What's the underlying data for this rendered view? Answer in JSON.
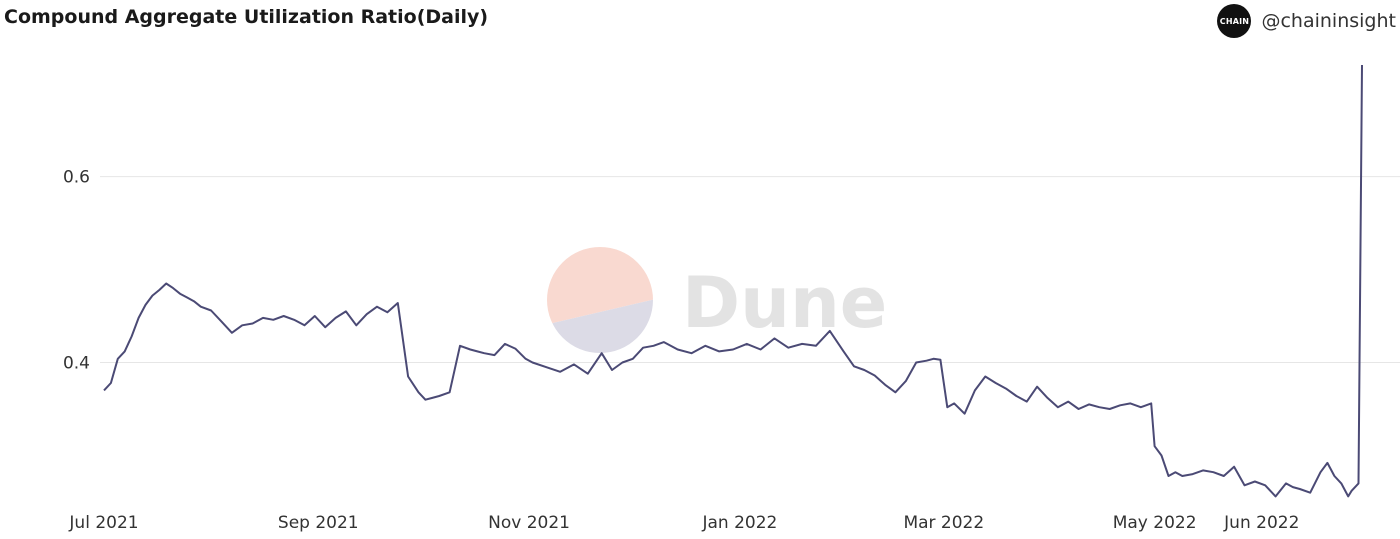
{
  "header": {
    "title": "Compound Aggregate Utilization Ratio(Daily)"
  },
  "brand": {
    "logo_text": "CHAIN",
    "handle": "@chaininsight"
  },
  "watermark": {
    "text": "Dune"
  },
  "colors": {
    "line": "#4b4a75",
    "grid": "#e6e6e6",
    "wm_top": "#f9d9d0",
    "wm_bottom": "#dcdbe6"
  },
  "chart_data": {
    "type": "line",
    "title": "Compound Aggregate Utilization Ratio(Daily)",
    "xlabel": "",
    "ylabel": "",
    "x_range": [
      "2021-07-01",
      "2022-06-30"
    ],
    "ylim": [
      0.25,
      0.72
    ],
    "yticks": [
      0.4,
      0.6
    ],
    "ytick_labels": [
      "0.4",
      "0.6"
    ],
    "xticks": [
      "2021-07-01",
      "2021-09-01",
      "2021-11-01",
      "2022-01-01",
      "2022-03-01",
      "2022-05-01",
      "2022-06-01"
    ],
    "xtick_labels": [
      "Jul 2021",
      "Sep 2021",
      "Nov 2021",
      "Jan 2022",
      "Mar 2022",
      "May 2022",
      "Jun 2022"
    ],
    "grid": true,
    "series": [
      {
        "name": "",
        "x": [
          "2021-07-01",
          "2021-07-03",
          "2021-07-05",
          "2021-07-07",
          "2021-07-09",
          "2021-07-11",
          "2021-07-13",
          "2021-07-15",
          "2021-07-17",
          "2021-07-19",
          "2021-07-21",
          "2021-07-23",
          "2021-07-25",
          "2021-07-27",
          "2021-07-29",
          "2021-08-01",
          "2021-08-04",
          "2021-08-07",
          "2021-08-10",
          "2021-08-13",
          "2021-08-16",
          "2021-08-19",
          "2021-08-22",
          "2021-08-25",
          "2021-08-28",
          "2021-08-31",
          "2021-09-03",
          "2021-09-06",
          "2021-09-09",
          "2021-09-12",
          "2021-09-15",
          "2021-09-18",
          "2021-09-21",
          "2021-09-24",
          "2021-09-27",
          "2021-09-30",
          "2021-10-02",
          "2021-10-04",
          "2021-10-06",
          "2021-10-09",
          "2021-10-12",
          "2021-10-15",
          "2021-10-17",
          "2021-10-19",
          "2021-10-22",
          "2021-10-25",
          "2021-10-28",
          "2021-10-31",
          "2021-11-02",
          "2021-11-06",
          "2021-11-10",
          "2021-11-14",
          "2021-11-18",
          "2021-11-22",
          "2021-11-25",
          "2021-11-28",
          "2021-12-01",
          "2021-12-04",
          "2021-12-07",
          "2021-12-10",
          "2021-12-14",
          "2021-12-18",
          "2021-12-22",
          "2021-12-26",
          "2021-12-30",
          "2022-01-03",
          "2022-01-07",
          "2022-01-11",
          "2022-01-15",
          "2022-01-19",
          "2022-01-23",
          "2022-01-27",
          "2022-01-31",
          "2022-02-03",
          "2022-02-06",
          "2022-02-09",
          "2022-02-12",
          "2022-02-15",
          "2022-02-18",
          "2022-02-21",
          "2022-02-24",
          "2022-02-26",
          "2022-02-28",
          "2022-03-02",
          "2022-03-04",
          "2022-03-07",
          "2022-03-10",
          "2022-03-13",
          "2022-03-16",
          "2022-03-19",
          "2022-03-22",
          "2022-03-25",
          "2022-03-28",
          "2022-03-31",
          "2022-04-03",
          "2022-04-06",
          "2022-04-09",
          "2022-04-12",
          "2022-04-15",
          "2022-04-18",
          "2022-04-21",
          "2022-04-24",
          "2022-04-27",
          "2022-04-30",
          "2022-05-01",
          "2022-05-03",
          "2022-05-05",
          "2022-05-07",
          "2022-05-09",
          "2022-05-12",
          "2022-05-15",
          "2022-05-18",
          "2022-05-21",
          "2022-05-24",
          "2022-05-27",
          "2022-05-30",
          "2022-06-02",
          "2022-06-05",
          "2022-06-08",
          "2022-06-10",
          "2022-06-12",
          "2022-06-15",
          "2022-06-18",
          "2022-06-20",
          "2022-06-22",
          "2022-06-24",
          "2022-06-26",
          "2022-06-27",
          "2022-06-29",
          "2022-06-30"
        ],
        "y": [
          0.37,
          0.378,
          0.404,
          0.412,
          0.428,
          0.448,
          0.462,
          0.472,
          0.478,
          0.485,
          0.48,
          0.474,
          0.47,
          0.466,
          0.46,
          0.456,
          0.444,
          0.432,
          0.44,
          0.442,
          0.448,
          0.446,
          0.45,
          0.446,
          0.44,
          0.45,
          0.438,
          0.448,
          0.455,
          0.44,
          0.452,
          0.46,
          0.454,
          0.464,
          0.385,
          0.368,
          0.36,
          0.362,
          0.364,
          0.368,
          0.418,
          0.414,
          0.412,
          0.41,
          0.408,
          0.42,
          0.415,
          0.404,
          0.4,
          0.395,
          0.39,
          0.398,
          0.388,
          0.41,
          0.392,
          0.4,
          0.404,
          0.416,
          0.418,
          0.422,
          0.414,
          0.41,
          0.418,
          0.412,
          0.414,
          0.42,
          0.414,
          0.426,
          0.416,
          0.42,
          0.418,
          0.434,
          0.412,
          0.396,
          0.392,
          0.386,
          0.376,
          0.368,
          0.38,
          0.4,
          0.402,
          0.404,
          0.403,
          0.352,
          0.356,
          0.345,
          0.37,
          0.385,
          0.378,
          0.372,
          0.364,
          0.358,
          0.374,
          0.362,
          0.352,
          0.358,
          0.35,
          0.355,
          0.352,
          0.35,
          0.354,
          0.356,
          0.352,
          0.356,
          0.31,
          0.3,
          0.278,
          0.282,
          0.278,
          0.28,
          0.284,
          0.282,
          0.278,
          0.288,
          0.268,
          0.272,
          0.268,
          0.256,
          0.27,
          0.266,
          0.264,
          0.26,
          0.282,
          0.292,
          0.278,
          0.27,
          0.256,
          0.262,
          0.27,
          0.72
        ]
      }
    ]
  }
}
